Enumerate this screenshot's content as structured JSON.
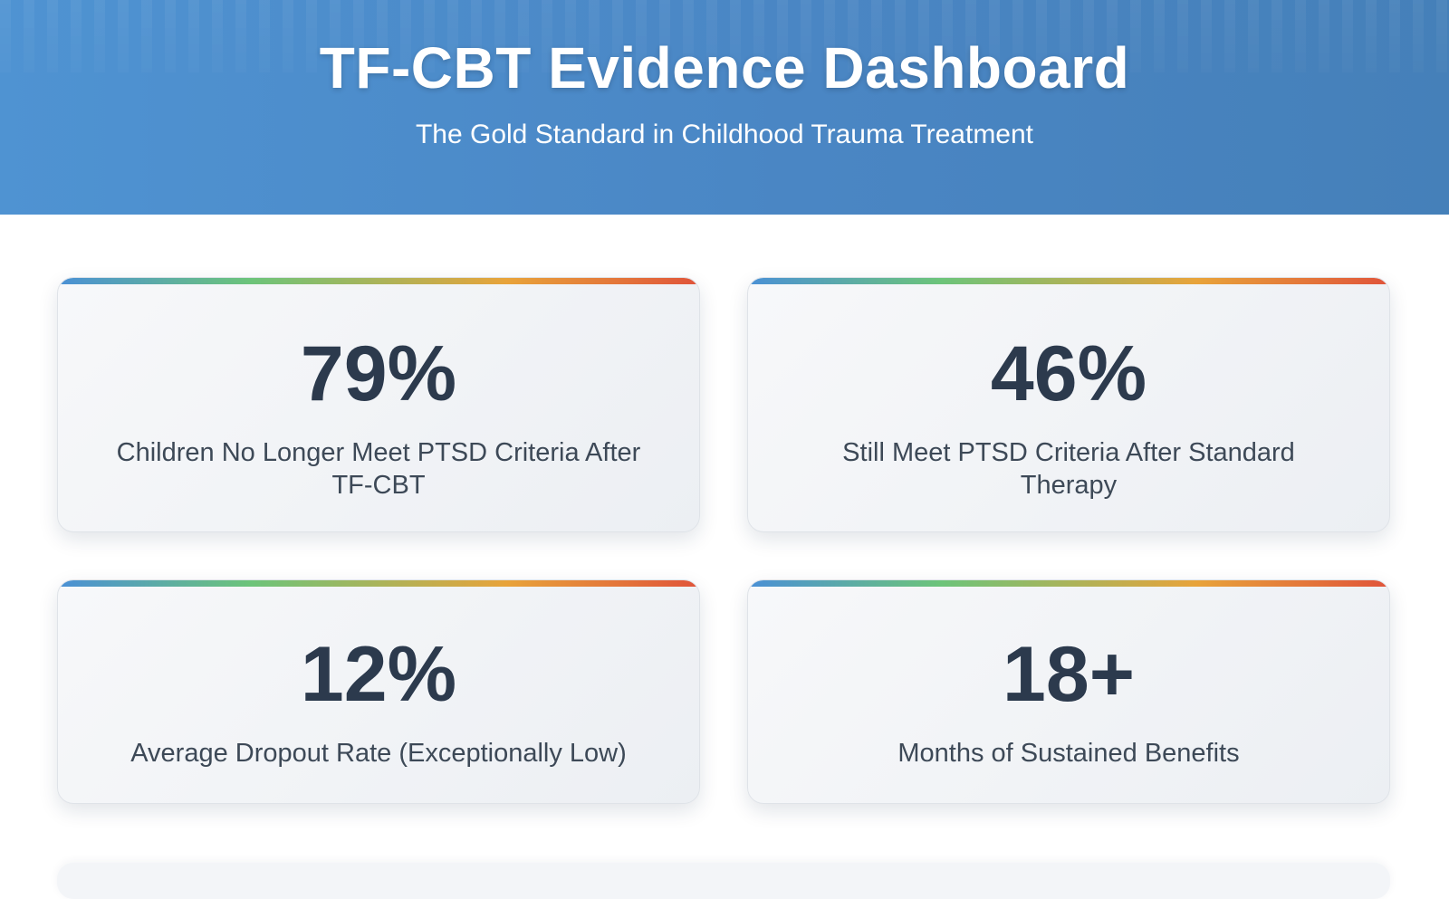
{
  "header": {
    "title": "TF-CBT Evidence Dashboard",
    "subtitle": "The Gold Standard in Childhood Trauma Treatment"
  },
  "stats": [
    {
      "value": "79%",
      "label": "Children No Longer Meet PTSD Criteria After TF-CBT"
    },
    {
      "value": "46%",
      "label": "Still Meet PTSD Criteria After Standard Therapy"
    },
    {
      "value": "12%",
      "label": "Average Dropout Rate (Exceptionally Low)"
    },
    {
      "value": "18+",
      "label": "Months of Sustained Benefits"
    }
  ],
  "colors": {
    "header_start": "#4f93d2",
    "header_end": "#4580b9",
    "value_text": "#2c3a4d",
    "accent_bar": [
      "#4a90d6",
      "#6cc47a",
      "#e8a33a",
      "#e0543a"
    ]
  }
}
